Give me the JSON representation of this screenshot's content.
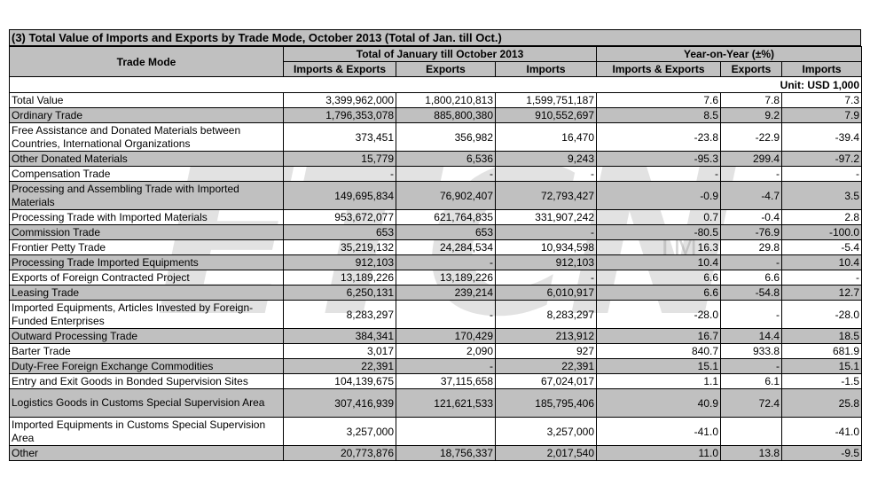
{
  "title": "(3) Total Value of Imports and Exports by Trade Mode, October 2013 (Total of Jan. till Oct.)",
  "unit": "Unit: USD 1,000",
  "watermark": "ETCN",
  "watermark_tm": "TM",
  "headers": {
    "trade_mode": "Trade Mode",
    "group_total": "Total of January till October 2013",
    "group_yoy": "Year-on-Year (±%)",
    "columns": [
      "Imports & Exports",
      "Exports",
      "Imports",
      "Imports & Exports",
      "Exports",
      "Imports"
    ]
  },
  "rows": [
    {
      "name": "Total Value",
      "ie": "3,399,962,000",
      "ex": "1,800,210,813",
      "im": "1,599,751,187",
      "yie": "7.6",
      "yex": "7.8",
      "yim": "7.3",
      "shade": false,
      "tall": false
    },
    {
      "name": "Ordinary Trade",
      "ie": "1,796,353,078",
      "ex": "885,800,380",
      "im": "910,552,697",
      "yie": "8.5",
      "yex": "9.2",
      "yim": "7.9",
      "shade": true,
      "tall": false
    },
    {
      "name": "Free Assistance and Donated Materials between Countries, International Organizations",
      "ie": "373,451",
      "ex": "356,982",
      "im": "16,470",
      "yie": "-23.8",
      "yex": "-22.9",
      "yim": "-39.4",
      "shade": false,
      "tall": true
    },
    {
      "name": "Other Donated Materials",
      "ie": "15,779",
      "ex": "6,536",
      "im": "9,243",
      "yie": "-95.3",
      "yex": "299.4",
      "yim": "-97.2",
      "shade": true,
      "tall": false
    },
    {
      "name": "Compensation Trade",
      "ie": "-",
      "ex": "-",
      "im": "-",
      "yie": "-",
      "yex": "-",
      "yim": "-",
      "shade": false,
      "tall": false
    },
    {
      "name": "Processing and Assembling Trade with Imported Materials",
      "ie": "149,695,834",
      "ex": "76,902,407",
      "im": "72,793,427",
      "yie": "-0.9",
      "yex": "-4.7",
      "yim": "3.5",
      "shade": true,
      "tall": true
    },
    {
      "name": "Processing Trade with Imported Materials",
      "ie": "953,672,077",
      "ex": "621,764,835",
      "im": "331,907,242",
      "yie": "0.7",
      "yex": "-0.4",
      "yim": "2.8",
      "shade": false,
      "tall": false
    },
    {
      "name": "Commission Trade",
      "ie": "653",
      "ex": "653",
      "im": "-",
      "yie": "-80.5",
      "yex": "-76.9",
      "yim": "-100.0",
      "shade": true,
      "tall": false
    },
    {
      "name": "Frontier Petty Trade",
      "ie": "35,219,132",
      "ex": "24,284,534",
      "im": "10,934,598",
      "yie": "16.3",
      "yex": "29.8",
      "yim": "-5.4",
      "shade": false,
      "tall": false
    },
    {
      "name": "Processing Trade Imported Equipments",
      "ie": "912,103",
      "ex": "-",
      "im": "912,103",
      "yie": "10.4",
      "yex": "-",
      "yim": "10.4",
      "shade": true,
      "tall": false
    },
    {
      "name": "Exports of Foreign Contracted Project",
      "ie": "13,189,226",
      "ex": "13,189,226",
      "im": "-",
      "yie": "6.6",
      "yex": "6.6",
      "yim": "-",
      "shade": false,
      "tall": false
    },
    {
      "name": "Leasing Trade",
      "ie": "6,250,131",
      "ex": "239,214",
      "im": "6,010,917",
      "yie": "6.6",
      "yex": "-54.8",
      "yim": "12.7",
      "shade": true,
      "tall": false
    },
    {
      "name": "Imported Equipments, Articles Invested by Foreign-Funded Enterprises",
      "ie": "8,283,297",
      "ex": "-",
      "im": "8,283,297",
      "yie": "-28.0",
      "yex": "-",
      "yim": "-28.0",
      "shade": false,
      "tall": true
    },
    {
      "name": "Outward Processing Trade",
      "ie": "384,341",
      "ex": "170,429",
      "im": "213,912",
      "yie": "16.7",
      "yex": "14.4",
      "yim": "18.5",
      "shade": true,
      "tall": false
    },
    {
      "name": "Barter Trade",
      "ie": "3,017",
      "ex": "2,090",
      "im": "927",
      "yie": "840.7",
      "yex": "933.8",
      "yim": "681.9",
      "shade": false,
      "tall": false
    },
    {
      "name": "Duty-Free Foreign Exchange Commodities",
      "ie": "22,391",
      "ex": "-",
      "im": "22,391",
      "yie": "15.1",
      "yex": "-",
      "yim": "15.1",
      "shade": true,
      "tall": false
    },
    {
      "name": "Entry and Exit Goods in Bonded Supervision Sites",
      "ie": "104,139,675",
      "ex": "37,115,658",
      "im": "67,024,017",
      "yie": "1.1",
      "yex": "6.1",
      "yim": "-1.5",
      "shade": false,
      "tall": false
    },
    {
      "name": "Logistics Goods in Customs Special Supervision Area",
      "ie": "307,416,939",
      "ex": "121,621,533",
      "im": "185,795,406",
      "yie": "40.9",
      "yex": "72.4",
      "yim": "25.8",
      "shade": true,
      "tall": true
    },
    {
      "name": "Imported Equipments in Customs Special Supervision Area",
      "ie": "3,257,000",
      "ex": "",
      "im": "3,257,000",
      "yie": "-41.0",
      "yex": "",
      "yim": "-41.0",
      "shade": false,
      "tall": true
    },
    {
      "name": "Other",
      "ie": "20,773,876",
      "ex": "18,756,337",
      "im": "2,017,540",
      "yie": "11.0",
      "yex": "13.8",
      "yim": "-9.5",
      "shade": true,
      "tall": false
    }
  ]
}
